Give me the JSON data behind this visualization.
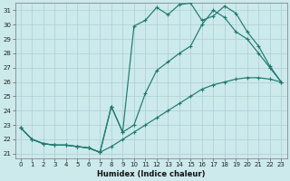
{
  "xlabel": "Humidex (Indice chaleur)",
  "bg_color": "#cce9ec",
  "grid_color": "#aacfd4",
  "line_color": "#1e7a6e",
  "xlim_min": -0.5,
  "xlim_max": 23.5,
  "ylim_min": 20.7,
  "ylim_max": 31.5,
  "xticks": [
    0,
    1,
    2,
    3,
    4,
    5,
    6,
    7,
    8,
    9,
    10,
    11,
    12,
    13,
    14,
    15,
    16,
    17,
    18,
    19,
    20,
    21,
    22,
    23
  ],
  "yticks": [
    21,
    22,
    23,
    24,
    25,
    26,
    27,
    28,
    29,
    30,
    31
  ],
  "line_top_x": [
    0,
    1,
    2,
    3,
    4,
    5,
    6,
    7,
    8,
    9,
    10,
    11,
    12,
    13,
    14,
    15,
    16,
    17,
    18,
    19,
    20,
    21,
    22,
    23
  ],
  "line_top_y": [
    22.8,
    22.0,
    21.7,
    21.6,
    21.6,
    21.5,
    21.4,
    21.1,
    24.3,
    22.5,
    29.9,
    30.3,
    31.2,
    30.7,
    31.4,
    31.5,
    30.3,
    30.6,
    31.3,
    30.8,
    29.5,
    28.5,
    27.1,
    26.0
  ],
  "line_mid_x": [
    0,
    1,
    2,
    3,
    4,
    5,
    6,
    7,
    8,
    9,
    10,
    11,
    12,
    13,
    14,
    15,
    16,
    17,
    18,
    19,
    20,
    21,
    22,
    23
  ],
  "line_mid_y": [
    22.8,
    22.0,
    21.7,
    21.6,
    21.6,
    21.5,
    21.4,
    21.1,
    24.3,
    22.5,
    23.0,
    25.2,
    26.8,
    27.4,
    28.0,
    28.5,
    30.0,
    31.0,
    30.5,
    29.5,
    29.0,
    28.0,
    27.0,
    26.0
  ],
  "line_bot_x": [
    0,
    1,
    2,
    3,
    4,
    5,
    6,
    7,
    8,
    9,
    10,
    11,
    12,
    13,
    14,
    15,
    16,
    17,
    18,
    19,
    20,
    21,
    22,
    23
  ],
  "line_bot_y": [
    22.8,
    22.0,
    21.7,
    21.6,
    21.6,
    21.5,
    21.4,
    21.1,
    21.5,
    22.0,
    22.5,
    23.0,
    23.5,
    24.0,
    24.5,
    25.0,
    25.5,
    25.8,
    26.0,
    26.2,
    26.3,
    26.3,
    26.2,
    26.0
  ]
}
